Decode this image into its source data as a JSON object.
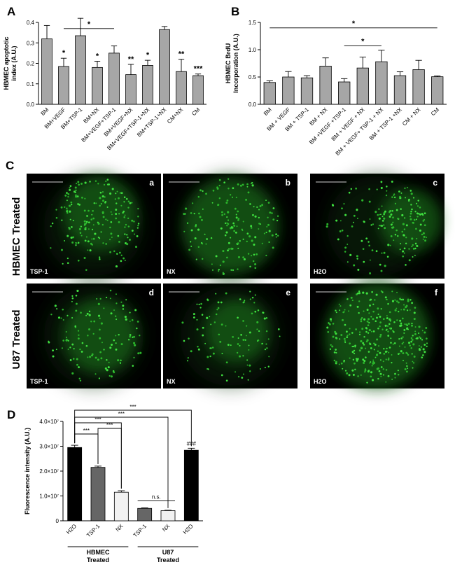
{
  "panels": {
    "A": "A",
    "B": "B",
    "C": "C",
    "D": "D"
  },
  "chart_data": [
    {
      "id": "A",
      "type": "bar",
      "ylabel": "HBMEC apoptotic\nindex (A.U.)",
      "ylim": [
        0,
        0.4
      ],
      "yticks": [
        "0.0",
        "0.1",
        "0.2",
        "0.3",
        "0.4"
      ],
      "yticks_values": [
        0,
        0.1,
        0.2,
        0.3,
        0.4
      ],
      "categories": [
        "BM",
        "BM+VEGF",
        "BM+TSP-1",
        "BM+NX",
        "BM+VEGF+TSP-1",
        "BM+VEGF+NX",
        "BM+VEGF+TSP-1+NX",
        "BM+TSP-1+NX",
        "CM+NX",
        "CM"
      ],
      "values": [
        0.32,
        0.185,
        0.335,
        0.18,
        0.25,
        0.145,
        0.19,
        0.365,
        0.16,
        0.14
      ],
      "errors": [
        0.065,
        0.04,
        0.085,
        0.03,
        0.035,
        0.05,
        0.025,
        0.015,
        0.06,
        0.008
      ],
      "marks": [
        "",
        "*",
        "",
        "*",
        "",
        "**",
        "*",
        "",
        "**",
        "***"
      ],
      "bracket": {
        "from": 1,
        "to": 4,
        "label": "*",
        "y": 0.37
      }
    },
    {
      "id": "B",
      "type": "bar",
      "ylabel": "HBMEC BrdU\nIncorporation (A.U.)",
      "ylim": [
        0,
        1.5
      ],
      "yticks": [
        "0.0",
        "0.5",
        "1.0",
        "1.5"
      ],
      "yticks_values": [
        0,
        0.5,
        1.0,
        1.5
      ],
      "categories": [
        "BM",
        "BM + VEGF",
        "BM + TSP-1",
        "BM + NX",
        "BM +VEGF +TSP-1",
        "BM + VEGF + NX",
        "BM + VEGF+ TSP-1 + NX",
        "BM + TSP-1 +NX",
        "CM + NX",
        "CM"
      ],
      "values": [
        0.4,
        0.5,
        0.485,
        0.7,
        0.41,
        0.665,
        0.78,
        0.525,
        0.635,
        0.505
      ],
      "errors": [
        0.03,
        0.1,
        0.04,
        0.15,
        0.06,
        0.2,
        0.21,
        0.07,
        0.17,
        0.015
      ],
      "marks": [
        "",
        "",
        "",
        "",
        "",
        "",
        "",
        "",
        "",
        ""
      ],
      "brackets": [
        {
          "from": 0,
          "to": 9,
          "label": "*",
          "y": 1.4
        },
        {
          "from": 4,
          "to": 6,
          "label": "*",
          "y": 1.07
        }
      ]
    },
    {
      "id": "D",
      "type": "bar",
      "ylabel": "Fluorescence intensity (A.U.)",
      "ylim": [
        0,
        40000000
      ],
      "yticks": [
        "0",
        "1.0×10⁷",
        "2.0×10⁷",
        "3.0×10⁷",
        "4.0×10⁷"
      ],
      "yticks_values": [
        0,
        10000000,
        20000000,
        30000000,
        40000000
      ],
      "categories": [
        "H2O",
        "TSP-1",
        "NX",
        "TSP-1",
        "NX",
        "H2O"
      ],
      "values": [
        29500000,
        21500000,
        11500000,
        5000000,
        4100000,
        28400000
      ],
      "errors": [
        900000,
        500000,
        600000,
        200000,
        150000,
        800000
      ],
      "colors": [
        "#000000",
        "#666666",
        "#f2f2f2",
        "#666666",
        "#f2f2f2",
        "#000000"
      ],
      "groups": [
        {
          "label": "HBMEC\nTreated",
          "from": 0,
          "to": 2
        },
        {
          "label": "U87\nTreated",
          "from": 3,
          "to": 5
        }
      ],
      "top_mark": {
        "bar": 5,
        "label": "###"
      },
      "brackets": [
        {
          "from": 0,
          "to": 1,
          "label": "***",
          "level": 0
        },
        {
          "from": 1,
          "to": 2,
          "label": "***",
          "level": 1
        },
        {
          "from": 0,
          "to": 2,
          "label": "***",
          "level": 2
        },
        {
          "from": 0,
          "to": 4,
          "label": "***",
          "level": 3
        },
        {
          "from": 0,
          "to": 5,
          "label": "***",
          "level": 4
        },
        {
          "from": 3,
          "to": 4,
          "label": "n.s.",
          "level": -1
        }
      ]
    }
  ],
  "micrographs": {
    "row_labels": [
      "HBMEC Treated",
      "U87 Treated"
    ],
    "tiles": [
      {
        "letter": "a",
        "label": "TSP-1"
      },
      {
        "letter": "b",
        "label": "NX"
      },
      {
        "letter": "c",
        "label": "H2O"
      },
      {
        "letter": "d",
        "label": "TSP-1"
      },
      {
        "letter": "e",
        "label": "NX"
      },
      {
        "letter": "f",
        "label": "H2O"
      }
    ]
  }
}
